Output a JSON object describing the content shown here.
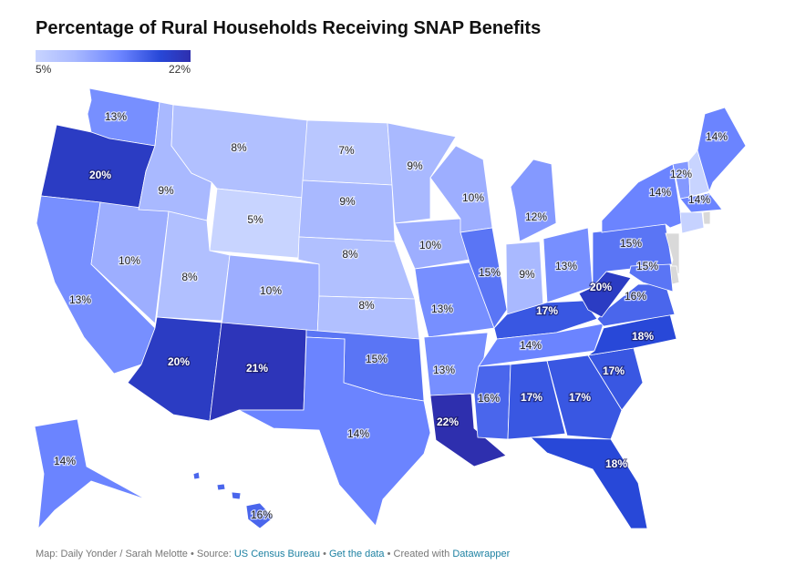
{
  "title": "Percentage of Rural Households Receiving SNAP Benefits",
  "legend": {
    "min_label": "5%",
    "max_label": "22%",
    "min": 5,
    "max": 22,
    "colors": [
      "#c8d4ff",
      "#a9b9ff",
      "#6b84ff",
      "#2848d8",
      "#2e2fae"
    ]
  },
  "no_data_color": "#d9d9d9",
  "states": [
    {
      "name": "Washington",
      "label": "13%",
      "value": 13
    },
    {
      "name": "Oregon",
      "label": "20%",
      "value": 20
    },
    {
      "name": "California",
      "label": "13%",
      "value": 13
    },
    {
      "name": "Nevada",
      "label": "10%",
      "value": 10
    },
    {
      "name": "Idaho",
      "label": "9%",
      "value": 9
    },
    {
      "name": "Montana",
      "label": "8%",
      "value": 8
    },
    {
      "name": "Wyoming",
      "label": "5%",
      "value": 5
    },
    {
      "name": "Utah",
      "label": "8%",
      "value": 8
    },
    {
      "name": "Colorado",
      "label": "10%",
      "value": 10
    },
    {
      "name": "Arizona",
      "label": "20%",
      "value": 20
    },
    {
      "name": "New Mexico",
      "label": "21%",
      "value": 21
    },
    {
      "name": "North Dakota",
      "label": "7%",
      "value": 7
    },
    {
      "name": "South Dakota",
      "label": "9%",
      "value": 9
    },
    {
      "name": "Nebraska",
      "label": "8%",
      "value": 8
    },
    {
      "name": "Kansas",
      "label": "8%",
      "value": 8
    },
    {
      "name": "Oklahoma",
      "label": "15%",
      "value": 15
    },
    {
      "name": "Texas",
      "label": "14%",
      "value": 14
    },
    {
      "name": "Minnesota",
      "label": "9%",
      "value": 9
    },
    {
      "name": "Iowa",
      "label": "10%",
      "value": 10
    },
    {
      "name": "Missouri",
      "label": "13%",
      "value": 13
    },
    {
      "name": "Arkansas",
      "label": "13%",
      "value": 13
    },
    {
      "name": "Louisiana",
      "label": "22%",
      "value": 22
    },
    {
      "name": "Wisconsin",
      "label": "10%",
      "value": 10
    },
    {
      "name": "Illinois",
      "label": "15%",
      "value": 15
    },
    {
      "name": "Michigan",
      "label": "12%",
      "value": 12
    },
    {
      "name": "Indiana",
      "label": "9%",
      "value": 9
    },
    {
      "name": "Ohio",
      "label": "13%",
      "value": 13
    },
    {
      "name": "Kentucky",
      "label": "17%",
      "value": 17
    },
    {
      "name": "Tennessee",
      "label": "14%",
      "value": 14
    },
    {
      "name": "Mississippi",
      "label": "16%",
      "value": 16
    },
    {
      "name": "Alabama",
      "label": "17%",
      "value": 17
    },
    {
      "name": "Georgia",
      "label": "17%",
      "value": 17
    },
    {
      "name": "Florida",
      "label": "18%",
      "value": 18
    },
    {
      "name": "South Carolina",
      "label": "17%",
      "value": 17
    },
    {
      "name": "North Carolina",
      "label": "18%",
      "value": 18
    },
    {
      "name": "Virginia",
      "label": "16%",
      "value": 16
    },
    {
      "name": "West Virginia",
      "label": "20%",
      "value": 20
    },
    {
      "name": "Pennsylvania",
      "label": "15%",
      "value": 15
    },
    {
      "name": "New York",
      "label": "14%",
      "value": 14
    },
    {
      "name": "Vermont",
      "label": "12%",
      "value": 12
    },
    {
      "name": "New Hampshire",
      "label": "",
      "fill": "#c8d4ff"
    },
    {
      "name": "Maine",
      "label": "14%",
      "value": 14
    },
    {
      "name": "Massachusetts",
      "label": "14%",
      "value": 14
    },
    {
      "name": "Connecticut",
      "label": "",
      "fill": "#c6d2ff"
    },
    {
      "name": "Rhode Island",
      "label": "",
      "fill": "#d9d9d9"
    },
    {
      "name": "New Jersey",
      "label": "",
      "fill": "#d9d9d9"
    },
    {
      "name": "Delaware",
      "label": "",
      "fill": "#d9d9d9"
    },
    {
      "name": "Maryland",
      "label": "15%",
      "value": 15
    },
    {
      "name": "Alaska",
      "label": "14%",
      "value": 14
    },
    {
      "name": "Hawaii",
      "label": "16%",
      "value": 16
    }
  ],
  "footer": {
    "prefix": "Map: Daily Yonder / Sarah Melotte • Source: ",
    "source": "US Census Bureau",
    "sep1": " • ",
    "get_data": "Get the data",
    "sep2": " • Created with ",
    "tool": "Datawrapper"
  }
}
